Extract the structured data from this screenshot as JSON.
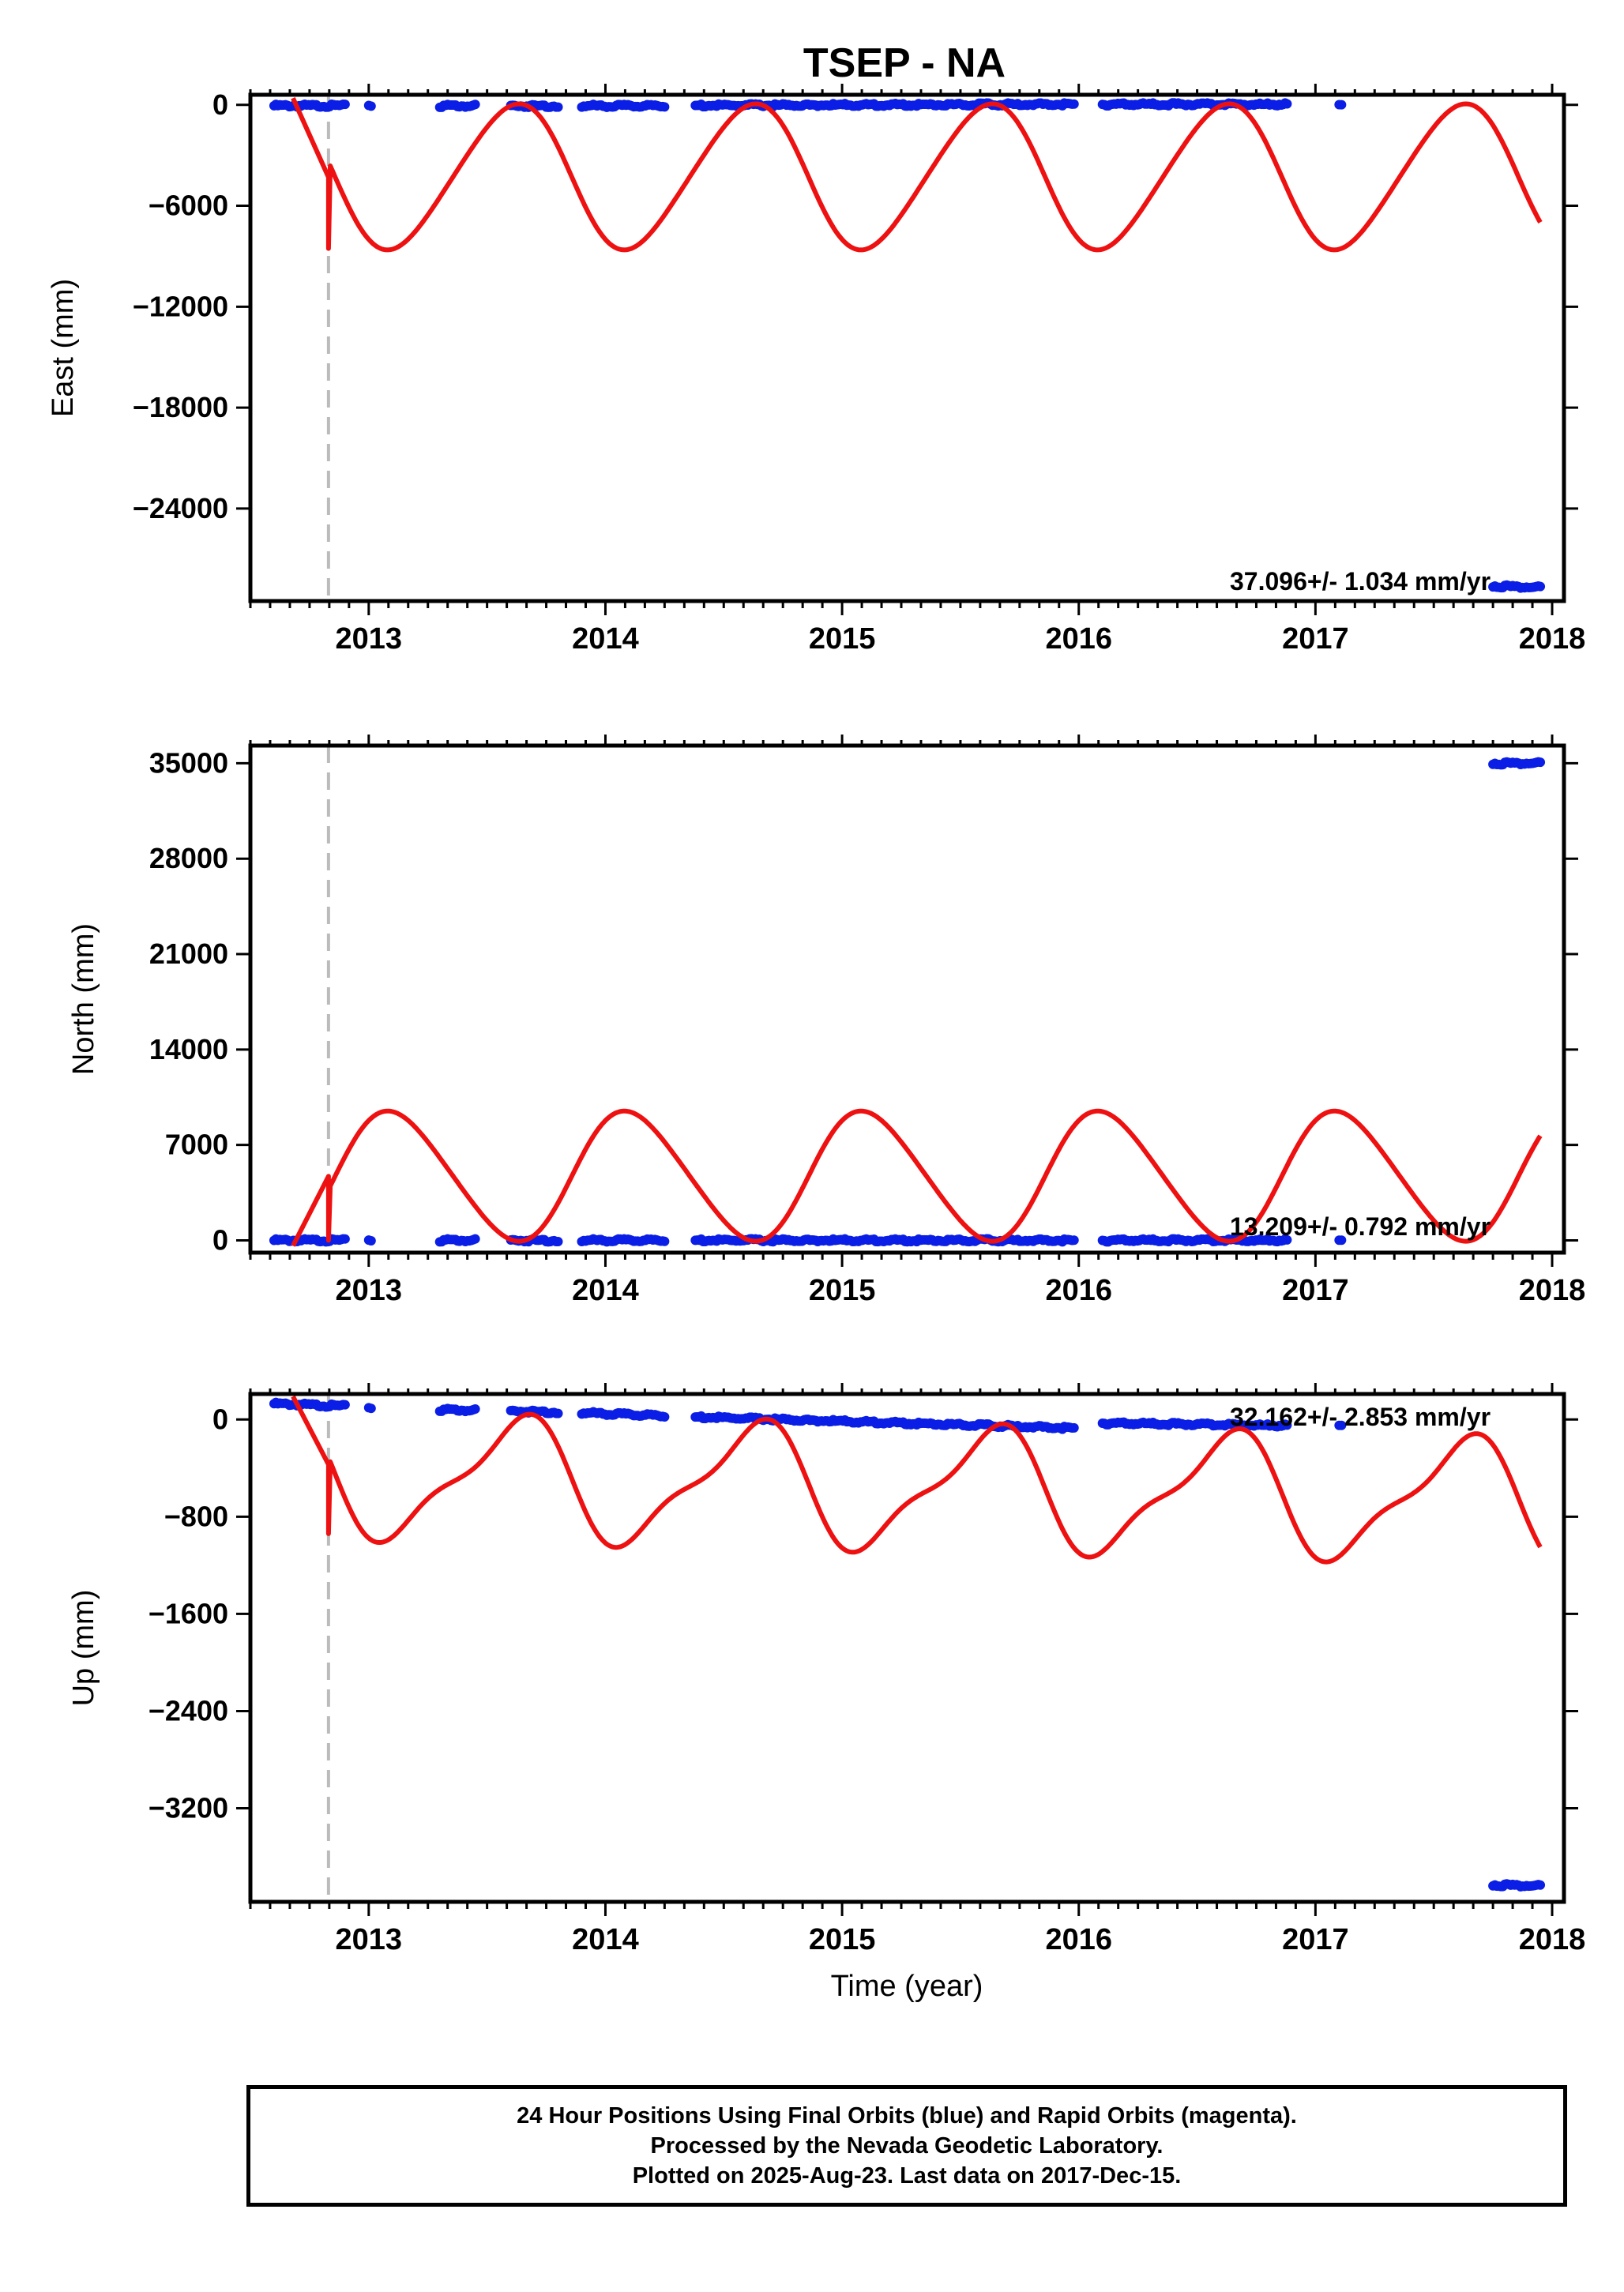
{
  "title": "TSEP - NA",
  "x_axis_label": "Time (year)",
  "colors": {
    "data": "#0a1ee6",
    "model": "#ee1111",
    "event": "#bbbbbb",
    "frame": "#000000"
  },
  "footer": {
    "line1": "24 Hour Positions Using Final Orbits (blue) and Rapid Orbits (magenta).",
    "line2": "Processed by the Nevada Geodetic Laboratory.",
    "line3": "Plotted on 2025-Aug-23. Last data on 2017-Dec-15."
  },
  "chart_data": [
    {
      "type": "scatter",
      "ylabel": "East (mm)",
      "xlim": [
        2012.5,
        2018.05
      ],
      "ylim": [
        -29500,
        600
      ],
      "yticks": [
        0,
        -6000,
        -12000,
        -18000,
        -24000
      ],
      "xticks": [
        2013,
        2014,
        2015,
        2016,
        2017,
        2018
      ],
      "rate_label": "37.096+/- 1.034 mm/yr",
      "event_line_x": 2012.83,
      "data_segments": [
        {
          "x": [
            2012.6,
            2012.9
          ],
          "y": [
            -50,
            -50
          ]
        },
        {
          "x": [
            2013.0,
            2013.01
          ],
          "y": [
            -50,
            -50
          ]
        },
        {
          "x": [
            2013.3,
            2013.45
          ],
          "y": [
            -60,
            -60
          ]
        },
        {
          "x": [
            2013.6,
            2013.8
          ],
          "y": [
            -60,
            -60
          ]
        },
        {
          "x": [
            2013.9,
            2014.25
          ],
          "y": [
            -60,
            -60
          ]
        },
        {
          "x": [
            2014.38,
            2015.98
          ],
          "y": [
            -40,
            40
          ]
        },
        {
          "x": [
            2016.1,
            2016.88
          ],
          "y": [
            30,
            30
          ]
        },
        {
          "x": [
            2017.1,
            2017.11
          ],
          "y": [
            0,
            0
          ]
        },
        {
          "x": [
            2017.75,
            2017.95
          ],
          "y": [
            -28600,
            -28700
          ]
        }
      ],
      "model": {
        "pre": [
          [
            2012.68,
            400
          ],
          [
            2012.83,
            -4300
          ]
        ],
        "post_start": 2012.83,
        "post_end": 2017.95,
        "amp1": 4270,
        "phase1": 1.4,
        "amp2": 400,
        "phase2": 1.2,
        "offset": -4270
      }
    },
    {
      "type": "scatter",
      "ylabel": "North (mm)",
      "xlim": [
        2012.5,
        2018.05
      ],
      "ylim": [
        -900,
        36300
      ],
      "yticks": [
        35000,
        28000,
        21000,
        14000,
        7000,
        0
      ],
      "xticks": [
        2013,
        2014,
        2015,
        2016,
        2017,
        2018
      ],
      "rate_label": "13.209+/- 0.792 mm/yr",
      "event_line_x": 2012.83,
      "data_segments": [
        {
          "x": [
            2012.6,
            2012.9
          ],
          "y": [
            0,
            0
          ]
        },
        {
          "x": [
            2013.0,
            2013.01
          ],
          "y": [
            0,
            0
          ]
        },
        {
          "x": [
            2013.3,
            2013.45
          ],
          "y": [
            0,
            0
          ]
        },
        {
          "x": [
            2013.6,
            2013.8
          ],
          "y": [
            0,
            0
          ]
        },
        {
          "x": [
            2013.9,
            2014.25
          ],
          "y": [
            0,
            0
          ]
        },
        {
          "x": [
            2014.38,
            2015.98
          ],
          "y": [
            0,
            0
          ]
        },
        {
          "x": [
            2016.1,
            2016.88
          ],
          "y": [
            0,
            0
          ]
        },
        {
          "x": [
            2017.1,
            2017.11
          ],
          "y": [
            0,
            0
          ]
        },
        {
          "x": [
            2017.75,
            2017.95
          ],
          "y": [
            35000,
            35000
          ]
        }
      ],
      "model": {
        "pre": [
          [
            2012.68,
            -400
          ],
          [
            2012.83,
            4700
          ]
        ],
        "post_start": 2012.83,
        "post_end": 2017.95,
        "amp1": 4700,
        "phase1": 4.54,
        "amp2": 430,
        "phase2": 4.34,
        "offset": 4700
      }
    },
    {
      "type": "scatter",
      "ylabel": "Up (mm)",
      "xlim": [
        2012.5,
        2018.05
      ],
      "ylim": [
        -3970,
        210
      ],
      "yticks": [
        0,
        -800,
        -1600,
        -2400,
        -3200
      ],
      "xticks": [
        2013,
        2014,
        2015,
        2016,
        2017,
        2018
      ],
      "rate_label": "32.162+/- 2.853 mm/yr",
      "event_line_x": 2012.83,
      "data_segments": [
        {
          "x": [
            2012.6,
            2012.9
          ],
          "y": [
            130,
            110
          ]
        },
        {
          "x": [
            2013.0,
            2013.01
          ],
          "y": [
            95,
            95
          ]
        },
        {
          "x": [
            2013.3,
            2013.45
          ],
          "y": [
            80,
            75
          ]
        },
        {
          "x": [
            2013.6,
            2013.8
          ],
          "y": [
            70,
            60
          ]
        },
        {
          "x": [
            2013.9,
            2014.25
          ],
          "y": [
            55,
            30
          ]
        },
        {
          "x": [
            2014.38,
            2015.98
          ],
          "y": [
            20,
            -70
          ]
        },
        {
          "x": [
            2016.1,
            2016.88
          ],
          "y": [
            -30,
            -50
          ]
        },
        {
          "x": [
            2017.1,
            2017.11
          ],
          "y": [
            -50,
            -50
          ]
        },
        {
          "x": [
            2017.75,
            2017.95
          ],
          "y": [
            -3830,
            -3840
          ]
        }
      ],
      "model": {
        "pre": [
          [
            2012.68,
            190
          ],
          [
            2012.83,
            -370
          ]
        ],
        "post_start": 2012.83,
        "post_end": 2017.95,
        "amp1": 470,
        "phase1": 1.35,
        "amp2": 150,
        "phase2": 1.2,
        "offset": -470,
        "trend": -40
      }
    }
  ]
}
